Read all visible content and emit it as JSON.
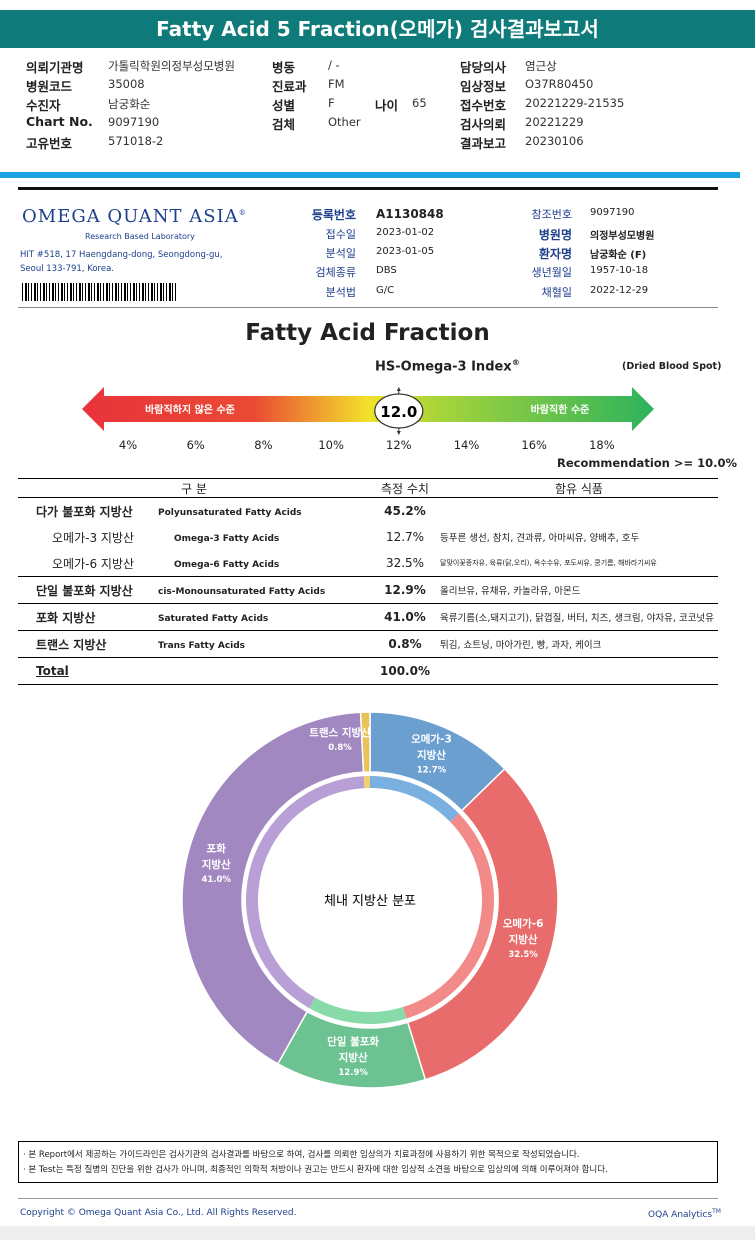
{
  "title": "Fatty Acid 5 Fraction(오메가) 검사결과보고서",
  "header_info": {
    "col1": [
      {
        "k": "의뢰기관명",
        "v": "가톨릭학원의정부성모병원"
      },
      {
        "k": "병원코드",
        "v": "35008"
      },
      {
        "k": "수진자",
        "v": "남궁화순"
      },
      {
        "k": "Chart No.",
        "v": "9097190"
      },
      {
        "k": "고유번호",
        "v": "571018-2"
      }
    ],
    "col2": [
      {
        "k": "병동",
        "v": "/ -"
      },
      {
        "k": "진료과",
        "v": "FM"
      },
      {
        "k": "성별",
        "v": "F"
      },
      {
        "k": "검체",
        "v": "Other"
      }
    ],
    "age_label": "나이",
    "age_value": "65",
    "col3": [
      {
        "k": "담당의사",
        "v": "염근상"
      },
      {
        "k": "임상정보",
        "v": "O37R80450"
      },
      {
        "k": "접수번호",
        "v": "20221229-21535"
      },
      {
        "k": "검사의뢰",
        "v": "20221229"
      },
      {
        "k": "결과보고",
        "v": "20230106"
      }
    ]
  },
  "lab": {
    "logo": "OMEGA QUANT ASIA",
    "logo_mark": "®",
    "sub": "Research Based Laboratory",
    "addr1": "HIT #518, 17 Haengdang-dong, Seongdong-gu,",
    "addr2": "Seoul 133-791, Korea."
  },
  "registration": {
    "left": [
      {
        "k": "등록번호",
        "v": "A1130848"
      },
      {
        "k": "접수일",
        "v": "2023-01-02"
      },
      {
        "k": "분석일",
        "v": "2023-01-05"
      },
      {
        "k": "검체종류",
        "v": "DBS"
      },
      {
        "k": "분석법",
        "v": "G/C"
      }
    ],
    "right": [
      {
        "k": "참조번호",
        "v": "9097190"
      },
      {
        "k": "병원명",
        "v": "의정부성모병원"
      },
      {
        "k": "환자명",
        "v": "남궁화순 (F)"
      },
      {
        "k": "생년월일",
        "v": "1957-10-18"
      },
      {
        "k": "채혈일",
        "v": "2022-12-29"
      }
    ]
  },
  "fraction_title": "Fatty Acid Fraction",
  "index": {
    "name": "HS-Omega-3 Index",
    "mark": "®",
    "sample": "(Dried Blood Spot)",
    "value": "12.0",
    "value_num": 12.0,
    "bad_label": "바람직하지 않은 수준",
    "good_label": "바람직한 수준",
    "scale": [
      "4%",
      "6%",
      "8%",
      "10%",
      "12%",
      "14%",
      "16%",
      "18%"
    ],
    "recommendation": "Recommendation  >= 10.0%",
    "colors": {
      "red": "#e8333a",
      "yellow": "#f2e12a",
      "green": "#2db35c"
    }
  },
  "table": {
    "headers": [
      "구 분",
      "측정 수치",
      "함유 식품"
    ],
    "rows": [
      {
        "kr": "다가 불포화 지방산",
        "en": "Polyunsaturated Fatty Acids",
        "val": "45.2%",
        "food": "",
        "sub": false
      },
      {
        "kr": "오메가-3 지방산",
        "en": "Omega-3 Fatty Acids",
        "val": "12.7%",
        "food": "등푸른 생선, 참치, 견과류, 아마씨유, 양배추, 호두",
        "sub": true
      },
      {
        "kr": "오메가-6 지방산",
        "en": "Omega-6 Fatty Acids",
        "val": "32.5%",
        "food": "달맞이꽃종자유, 육류(닭,오리), 옥수수유, 포도씨유, 콩기름, 해바라기씨유",
        "sub": true,
        "small": true
      },
      {
        "kr": "단일 불포화 지방산",
        "en": "cis-Monounsaturated Fatty Acids",
        "val": "12.9%",
        "food": "올리브유, 유채유, 카놀라유, 아몬드",
        "sub": false
      },
      {
        "kr": "포화 지방산",
        "en": "Saturated Fatty Acids",
        "val": "41.0%",
        "food": "육류기름(소,돼지고기), 닭껍질, 버터, 치즈, 생크림, 야자유, 코코넛유",
        "sub": false
      },
      {
        "kr": "트랜스 지방산",
        "en": "Trans Fatty Acids",
        "val": "0.8%",
        "food": "튀김, 쇼트닝, 마아가린, 빵, 과자, 케이크",
        "sub": false
      }
    ],
    "total_label": "Total",
    "total_val": "100.0%"
  },
  "chart_data": {
    "type": "pie",
    "title": "체내 지방산 분포",
    "slices": [
      {
        "label": "오메가-3 지방산",
        "value": 12.7,
        "pct": "12.7%",
        "color": "#6a9fd0",
        "inner": "#7ab0e0"
      },
      {
        "label": "오메가-6 지방산",
        "value": 32.5,
        "pct": "32.5%",
        "color": "#e86c6c",
        "inner": "#f28a8a"
      },
      {
        "label": "단일 불포화 지방산",
        "value": 12.9,
        "pct": "12.9%",
        "color": "#6cc290",
        "inner": "#88dba8"
      },
      {
        "label": "포화 지방산",
        "value": 41.0,
        "pct": "41.0%",
        "color": "#a288c0",
        "inner": "#b8a0d6"
      },
      {
        "label": "트랜스 지방산",
        "value": 0.8,
        "pct": "0.8%",
        "color": "#e8c35a",
        "inner": "#f0d070"
      }
    ]
  },
  "notes": [
    "· 본 Report에서 제공하는 가이드라인은 검사기관의 검사결과를 바탕으로 하여, 검사를 의뢰한 임상의가 치료과정에 사용하기 위한 목적으로 작성되었습니다.",
    "· 본 Test는 특정 질병의 진단을 위한 검사가 아니며, 최종적인 의학적 처방이나 권고는 반드시 환자에 대한 임상적 소견을 바탕으로 임상의에 의해 이루어져야 합니다."
  ],
  "footer": {
    "copyright": "Copyright © Omega Quant Asia Co., Ltd.  All Rights Reserved.",
    "brand": "OQA Analytics",
    "tm": "TM"
  }
}
